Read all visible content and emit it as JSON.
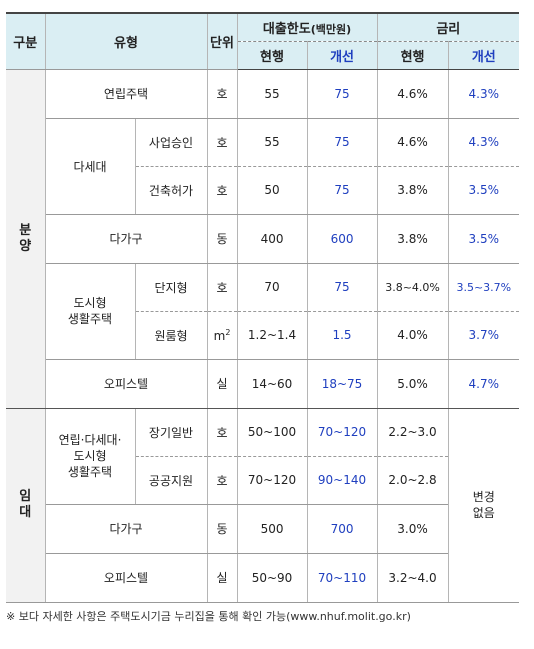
{
  "header": {
    "gubun": "구분",
    "type": "유형",
    "unit": "단위",
    "loan_limit": "대출한도",
    "loan_limit_unit": "(백만원)",
    "rate": "금리",
    "current": "현행",
    "improved": "개선"
  },
  "sections": {
    "sale": [
      "분",
      "양"
    ],
    "rent": [
      "임",
      "대"
    ]
  },
  "rows": {
    "row1": {
      "type": "연립주택",
      "unit": "호",
      "limit_cur": "55",
      "limit_new": "75",
      "rate_cur": "4.6%",
      "rate_new": "4.3%"
    },
    "row2_group": "다세대",
    "row2": {
      "sub": "사업승인",
      "unit": "호",
      "limit_cur": "55",
      "limit_new": "75",
      "rate_cur": "4.6%",
      "rate_new": "4.3%"
    },
    "row3": {
      "sub": "건축허가",
      "unit": "호",
      "limit_cur": "50",
      "limit_new": "75",
      "rate_cur": "3.8%",
      "rate_new": "3.5%"
    },
    "row4": {
      "type": "다가구",
      "unit": "동",
      "limit_cur": "400",
      "limit_new": "600",
      "rate_cur": "3.8%",
      "rate_new": "3.5%"
    },
    "row5_group": [
      "도시형",
      "생활주택"
    ],
    "row5": {
      "sub": "단지형",
      "unit": "호",
      "limit_cur": "70",
      "limit_new": "75",
      "rate_cur": "3.8~4.0%",
      "rate_new": "3.5~3.7%"
    },
    "row6": {
      "sub": "원룸형",
      "unit": "m",
      "unit_sup": "2",
      "limit_cur": "1.2~1.4",
      "limit_new": "1.5",
      "rate_cur": "4.0%",
      "rate_new": "3.7%"
    },
    "row7": {
      "type": "오피스텔",
      "unit": "실",
      "limit_cur": "14~60",
      "limit_new": "18~75",
      "rate_cur": "5.0%",
      "rate_new": "4.7%"
    },
    "row8_group": [
      "연립·다세대·",
      "도시형",
      "생활주택"
    ],
    "row8": {
      "sub": "장기일반",
      "unit": "호",
      "limit_cur": "50~100",
      "limit_new": "70~120",
      "rate_cur": "2.2~3.0"
    },
    "row9": {
      "sub": "공공지원",
      "unit": "호",
      "limit_cur": "70~120",
      "limit_new": "90~140",
      "rate_cur": "2.0~2.8"
    },
    "row10": {
      "type": "다가구",
      "unit": "동",
      "limit_cur": "500",
      "limit_new": "700",
      "rate_cur": "3.0%"
    },
    "row11": {
      "type": "오피스텔",
      "unit": "실",
      "limit_cur": "50~90",
      "limit_new": "70~110",
      "rate_cur": "3.2~4.0"
    },
    "rent_rate_new": [
      "변경",
      "없음"
    ]
  },
  "note": "※ 보다 자세한 사항은 주택도시기금 누리집을 통해 확인 가능(www.nhuf.molit.go.kr)"
}
